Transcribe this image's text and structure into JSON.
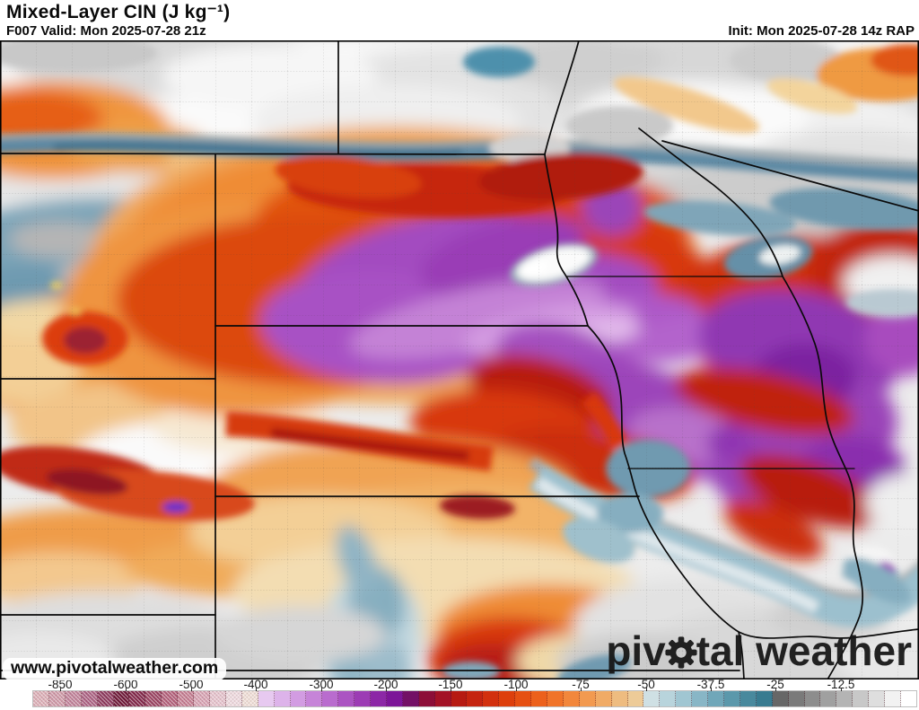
{
  "header": {
    "title": "Mixed-Layer CIN (J kg⁻¹)",
    "valid": "F007 Valid: Mon 2025-07-28 21z",
    "init": "Init: Mon 2025-07-28 14z RAP"
  },
  "watermark": {
    "url": "www.pivotalweather.com",
    "brand_pre": "piv",
    "brand_post": "tal weather",
    "gear_icon": "gear"
  },
  "colorbar": {
    "hatched_count": 14,
    "ticks": [
      {
        "label": "-850",
        "pos": 6.54
      },
      {
        "label": "-600",
        "pos": 13.67
      },
      {
        "label": "-500",
        "pos": 20.8
      },
      {
        "label": "-400",
        "pos": 27.83
      },
      {
        "label": "-300",
        "pos": 34.96
      },
      {
        "label": "-200",
        "pos": 41.99
      },
      {
        "label": "-150",
        "pos": 49.02
      },
      {
        "label": "-100",
        "pos": 56.15
      },
      {
        "label": "-75",
        "pos": 63.18
      },
      {
        "label": "-50",
        "pos": 70.31
      },
      {
        "label": "-37.5",
        "pos": 77.34
      },
      {
        "label": "-25",
        "pos": 84.38
      },
      {
        "label": "-12.5",
        "pos": 91.5
      }
    ],
    "segments": [
      "#dcaeb6",
      "#d09aa8",
      "#c2839a",
      "#ad6283",
      "#8f3a5e",
      "#6f1838",
      "#83284a",
      "#9c4462",
      "#b4607a",
      "#c67e92",
      "#d8a2b2",
      "#e6c2cc",
      "#efd9de",
      "#f0ded6",
      "#e7c9f0",
      "#ddb3ea",
      "#d29ce2",
      "#c684d8",
      "#b96cce",
      "#ab54c2",
      "#9c3cb4",
      "#8c27a6",
      "#7c1598",
      "#731066",
      "#8c0e38",
      "#a31226",
      "#b61a12",
      "#c52410",
      "#d2300e",
      "#dd3f0c",
      "#e65012",
      "#ec611c",
      "#f0742a",
      "#f2873c",
      "#f29a50",
      "#f0ab66",
      "#eebc80",
      "#edcb98",
      "#cfe0e4",
      "#b8d4dc",
      "#a0c6d2",
      "#88b6c6",
      "#70a7b9",
      "#5b98ab",
      "#48899d",
      "#387b90",
      "#676767",
      "#7a7a7a",
      "#8d8d8d",
      "#a0a0a0",
      "#b4b4b4",
      "#c8c8c8",
      "#dedede",
      "#f2f2f2",
      "#ffffff"
    ]
  }
}
